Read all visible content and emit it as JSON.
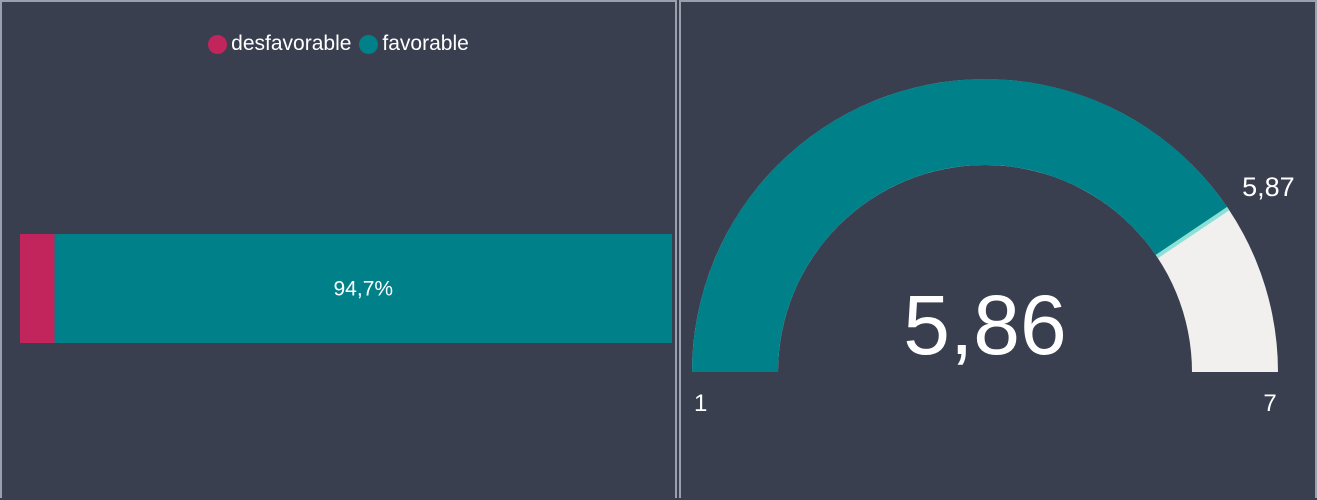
{
  "colors": {
    "unfavorable": "#c2255c",
    "favorable": "#00818a",
    "remaining": "#f1f0ee",
    "target": "#8be0d8"
  },
  "chart_data": [
    {
      "type": "bar",
      "orientation": "horizontal-100%-stacked",
      "legend_position": "top-center",
      "series": [
        {
          "name": "desfavorable",
          "value": 5.3,
          "label": ""
        },
        {
          "name": "favorable",
          "value": 94.7,
          "label": "94,7%"
        }
      ]
    },
    {
      "type": "gauge",
      "min": 1,
      "max": 7,
      "value": 5.86,
      "target": 5.87,
      "value_label": "5,86",
      "target_label": "5,87",
      "min_label": "1",
      "max_label": "7"
    }
  ]
}
